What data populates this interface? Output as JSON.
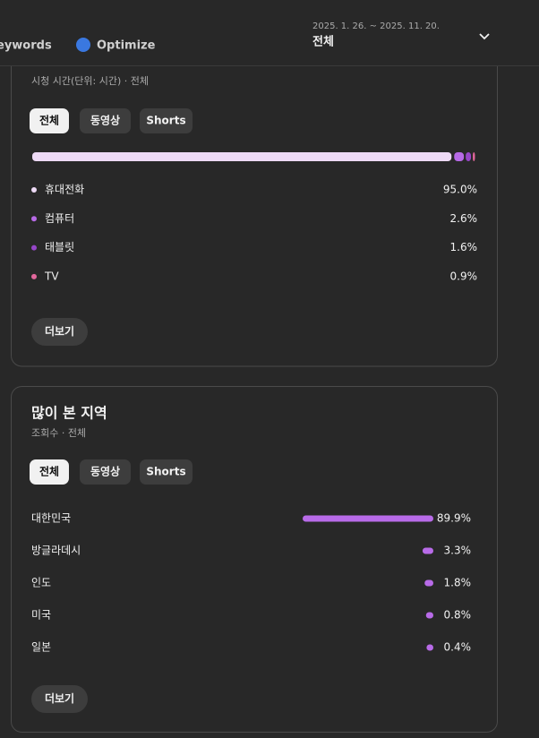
{
  "header": {
    "tabs": [
      "eywords",
      "Optimize"
    ],
    "date_range": "2025. 1. 26. ~ 2025. 11. 20.",
    "filter": "전체"
  },
  "device_card": {
    "subtitle": "시청 시간(단위: 시간) · 전체",
    "chips": [
      "전체",
      "동영상",
      "Shorts"
    ],
    "items": [
      {
        "name": "휴대전화",
        "value": 95.0,
        "label": "95.0%",
        "color": "#eedaf6"
      },
      {
        "name": "컴퓨터",
        "value": 2.6,
        "label": "2.6%",
        "color": "#b76ae6"
      },
      {
        "name": "태블릿",
        "value": 1.6,
        "label": "1.6%",
        "color": "#9646c8"
      },
      {
        "name": "TV",
        "value": 0.9,
        "label": "0.9%",
        "color": "#e2679c"
      }
    ],
    "more": "더보기"
  },
  "region_card": {
    "title": "많이 본 지역",
    "subtitle": "조회수 · 전체",
    "chips": [
      "전체",
      "동영상",
      "Shorts"
    ],
    "items": [
      {
        "name": "대한민국",
        "value": 89.9,
        "label": "89.9%"
      },
      {
        "name": "방글라데시",
        "value": 3.3,
        "label": "3.3%"
      },
      {
        "name": "인도",
        "value": 1.8,
        "label": "1.8%"
      },
      {
        "name": "미국",
        "value": 0.8,
        "label": "0.8%"
      },
      {
        "name": "일본",
        "value": 0.4,
        "label": "0.4%"
      }
    ],
    "bar_color": "#b86be8",
    "more": "더보기"
  }
}
